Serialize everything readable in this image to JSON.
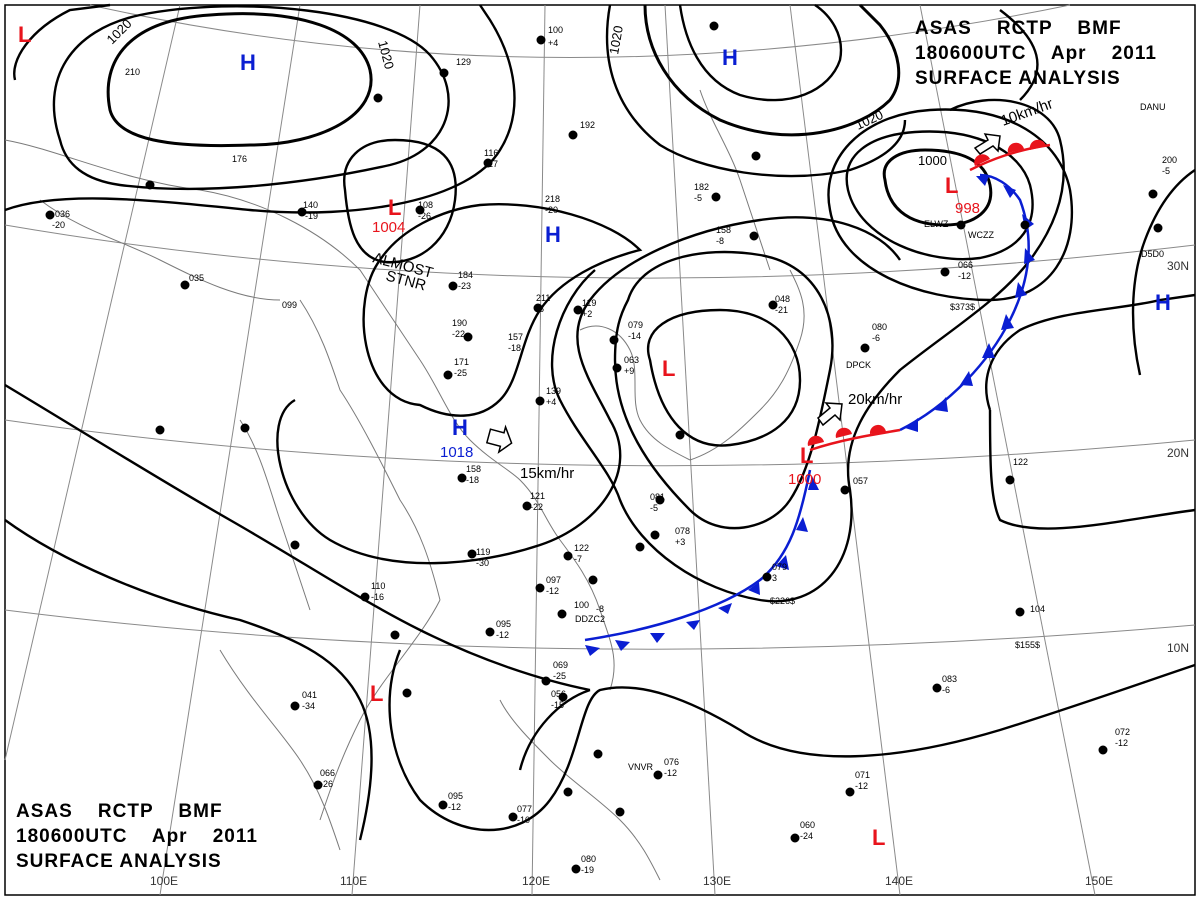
{
  "header_top": {
    "line1": "ASAS    RCTP    BMF",
    "line2": "180600UTC    Apr    2011",
    "line3": "SURFACE ANALYSIS"
  },
  "header_bottom": {
    "line1": "ASAS    RCTP    BMF",
    "line2": "180600UTC    Apr    2011",
    "line3": "SURFACE ANALYSIS"
  },
  "colors": {
    "high": "#0a1ed2",
    "low": "#e8141c",
    "isobar": "#000000",
    "cold_front": "#0a1ed2",
    "warm_front": "#e8141c",
    "grid": "#808080"
  },
  "longitude_labels": [
    "100E",
    "110E",
    "120E",
    "130E",
    "140E",
    "150E"
  ],
  "latitude_labels": [
    "10N",
    "20N",
    "30N"
  ],
  "isobar_labels": [
    "1020",
    "1020",
    "1020",
    "1020",
    "1000"
  ],
  "pressure_systems": [
    {
      "type": "H",
      "value": ""
    },
    {
      "type": "H",
      "value": ""
    },
    {
      "type": "H",
      "value": ""
    },
    {
      "type": "H",
      "value": "1018"
    },
    {
      "type": "H",
      "value": ""
    },
    {
      "type": "L",
      "value": "1004"
    },
    {
      "type": "L",
      "value": "998"
    },
    {
      "type": "L",
      "value": "1000"
    },
    {
      "type": "L",
      "value": ""
    },
    {
      "type": "L",
      "value": ""
    },
    {
      "type": "L",
      "value": ""
    },
    {
      "type": "L",
      "value": ""
    }
  ],
  "annotations": {
    "almost": "ALMOST",
    "stnr": "STNR",
    "motion_1": "15km/hr",
    "motion_2": "20km/hr",
    "motion_3": "10km/hr"
  },
  "station_values": [
    "100",
    "+4",
    "192",
    "218",
    "-20",
    "116",
    "-27",
    "108",
    "-26",
    "140",
    "-19",
    "184",
    "-23",
    "190",
    "-22",
    "157",
    "-18",
    "211",
    "-5",
    "119",
    "+2",
    "171",
    "-25",
    "139",
    "+4",
    "158",
    "-18",
    "121",
    "-22",
    "119",
    "-30",
    "122",
    "-7",
    "097",
    "-12",
    "100",
    "-8",
    "095",
    "-12",
    "110",
    "-16",
    "041",
    "-34",
    "066",
    "-26",
    "095",
    "-12",
    "077",
    "-10",
    "081",
    "-5",
    "078",
    "+3",
    "079",
    "3",
    "069",
    "-25",
    "056",
    "-15",
    "060",
    "-24",
    "080",
    "-19",
    "076",
    "-12",
    "083",
    "-6",
    "104",
    "122",
    "072",
    "-12",
    "071",
    "-12",
    "200",
    "-5",
    "182",
    "-5",
    "158",
    "-8",
    "066",
    "-12",
    "080",
    "-6",
    "048",
    "-21",
    "079",
    "-14",
    "063",
    "+9",
    "035",
    "099",
    "176",
    "210",
    "129",
    "036",
    "-20",
    "057",
    "$226$",
    "$155$",
    "$373$"
  ],
  "station_ids": [
    "DPCK",
    "VNVR",
    "DDZC2",
    "ELWZ",
    "WCZZ",
    "D5D0",
    "DANU"
  ]
}
